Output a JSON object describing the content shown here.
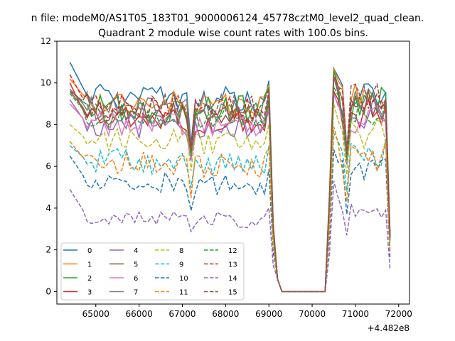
{
  "suptitle": "n file: modeM0/AS1T05_183T01_9000006124_45778cztM0_level2_quad_clean.",
  "chart_data": {
    "type": "line",
    "title": "Quadrant 2 module wise count rates with 100.0s bins.",
    "xlabel": "",
    "ylabel": "",
    "x_offset_label": "+4.482e8",
    "x_ticks": [
      65000,
      66000,
      67000,
      68000,
      69000,
      70000,
      71000,
      72000
    ],
    "x_tick_labels": [
      "65000",
      "66000",
      "67000",
      "68000",
      "69000",
      "70000",
      "71000",
      "72000"
    ],
    "y_ticks": [
      0,
      2,
      4,
      6,
      8,
      10,
      12
    ],
    "y_tick_labels": [
      "0",
      "2",
      "4",
      "6",
      "8",
      "10",
      "12"
    ],
    "xlim": [
      64100,
      72250
    ],
    "ylim": [
      -0.6,
      12
    ],
    "grid": false,
    "legend_position": "lower-left",
    "x_start": 64400,
    "x_step": 100,
    "gap": [
      69300,
      70300
    ],
    "series": [
      {
        "name": "0",
        "color": "#1f77b4",
        "dash": "solid",
        "level": 9.4,
        "amp": 0.3,
        "start": 11.0,
        "end": 9.6,
        "dip": 7.2
      },
      {
        "name": "1",
        "color": "#ff7f0e",
        "dash": "solid",
        "level": 9.2,
        "amp": 0.3,
        "start": 10.2,
        "end": 9.4,
        "dip": 7.0
      },
      {
        "name": "2",
        "color": "#2ca02c",
        "dash": "solid",
        "level": 8.9,
        "amp": 0.35,
        "start": 9.7,
        "end": 9.0,
        "dip": 6.9
      },
      {
        "name": "3",
        "color": "#d62728",
        "dash": "solid",
        "level": 8.3,
        "amp": 0.3,
        "start": 10.0,
        "end": 8.6,
        "dip": 6.6
      },
      {
        "name": "4",
        "color": "#9467bd",
        "dash": "solid",
        "level": 8.0,
        "amp": 0.3,
        "start": 9.2,
        "end": 8.5,
        "dip": 6.4
      },
      {
        "name": "5",
        "color": "#8c564b",
        "dash": "solid",
        "level": 8.6,
        "amp": 0.3,
        "start": 9.6,
        "end": 8.9,
        "dip": 6.7
      },
      {
        "name": "6",
        "color": "#e377c2",
        "dash": "solid",
        "level": 8.1,
        "amp": 0.3,
        "start": 9.0,
        "end": 8.3,
        "dip": 6.5
      },
      {
        "name": "7",
        "color": "#7f7f7f",
        "dash": "solid",
        "level": 8.8,
        "amp": 0.3,
        "start": 9.7,
        "end": 9.0,
        "dip": 6.8
      },
      {
        "name": "8",
        "color": "#bcbd22",
        "dash": "dashed",
        "level": 7.3,
        "amp": 0.3,
        "start": 8.0,
        "end": 7.6,
        "dip": 5.9
      },
      {
        "name": "9",
        "color": "#17becf",
        "dash": "dashed",
        "level": 6.3,
        "amp": 0.3,
        "start": 7.0,
        "end": 6.6,
        "dip": 5.1
      },
      {
        "name": "10",
        "color": "#1f77b4",
        "dash": "dashed",
        "level": 5.3,
        "amp": 0.25,
        "start": 6.5,
        "end": 5.8,
        "dip": 4.0
      },
      {
        "name": "11",
        "color": "#ff7f0e",
        "dash": "dashed",
        "level": 6.2,
        "amp": 0.3,
        "start": 7.2,
        "end": 6.5,
        "dip": 4.6
      },
      {
        "name": "12",
        "color": "#2ca02c",
        "dash": "dashed",
        "level": 8.5,
        "amp": 0.3,
        "start": 9.5,
        "end": 8.7,
        "dip": 6.6
      },
      {
        "name": "13",
        "color": "#d62728",
        "dash": "dashed",
        "level": 8.9,
        "amp": 0.3,
        "start": 10.4,
        "end": 9.1,
        "dip": 6.9
      },
      {
        "name": "14",
        "color": "#9467bd",
        "dash": "dashed",
        "level": 3.6,
        "amp": 0.2,
        "start": 4.9,
        "end": 3.8,
        "dip": 3.0
      },
      {
        "name": "15",
        "color": "#8c564b",
        "dash": "dashed",
        "level": 9.0,
        "amp": 0.3,
        "start": 9.6,
        "end": 9.3,
        "dip": 7.0
      }
    ]
  }
}
